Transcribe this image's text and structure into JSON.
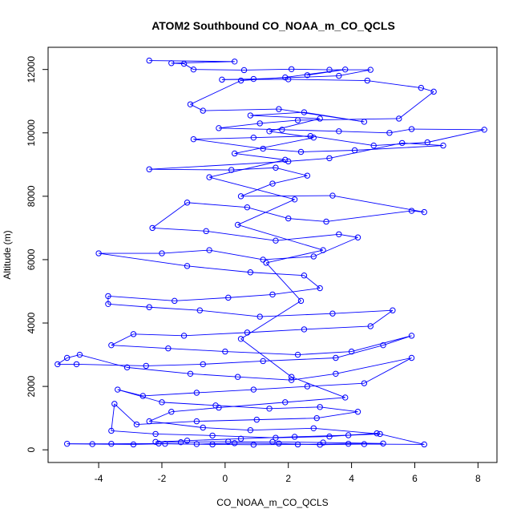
{
  "chart_data": {
    "type": "line",
    "title": "ATOM2 Southbound CO_NOAA_m_CO_QCLS",
    "xlabel": "CO_NOAA_m_CO_QCLS",
    "ylabel": "Altitude (m)",
    "xlim": [
      -5.6,
      8.6
    ],
    "ylim": [
      -400,
      12700
    ],
    "x_ticks": [
      -4,
      -2,
      0,
      2,
      4,
      6,
      8
    ],
    "y_ticks": [
      0,
      2000,
      4000,
      6000,
      8000,
      10000,
      12000
    ],
    "grid": false,
    "legend": "none",
    "colors": {
      "series": "#0000ff",
      "axes": "#000000",
      "background": "#ffffff"
    },
    "series": [
      {
        "markers": "open-circle",
        "connected": true,
        "points": [
          [
            -2.4,
            12280
          ],
          [
            0.3,
            12250
          ],
          [
            -1.7,
            12200
          ],
          [
            -1.3,
            12180
          ],
          [
            -1.0,
            12000
          ],
          [
            0.6,
            11980
          ],
          [
            2.1,
            12010
          ],
          [
            3.3,
            11990
          ],
          [
            4.6,
            11990
          ],
          [
            3.6,
            11800
          ],
          [
            0.9,
            11700
          ],
          [
            -0.1,
            11680
          ],
          [
            2.0,
            11690
          ],
          [
            4.5,
            11650
          ],
          [
            6.2,
            11420
          ],
          [
            6.6,
            11300
          ],
          [
            5.5,
            10450
          ],
          [
            2.3,
            10400
          ],
          [
            1.1,
            10300
          ],
          [
            -0.2,
            10150
          ],
          [
            1.8,
            10100
          ],
          [
            3.6,
            10050
          ],
          [
            5.2,
            10000
          ],
          [
            5.9,
            10120
          ],
          [
            8.2,
            10100
          ],
          [
            6.4,
            9700
          ],
          [
            4.7,
            9600
          ],
          [
            2.7,
            9900
          ],
          [
            0.9,
            9850
          ],
          [
            -1.0,
            9800
          ],
          [
            1.2,
            9500
          ],
          [
            2.4,
            9400
          ],
          [
            4.1,
            9450
          ],
          [
            6.9,
            9600
          ],
          [
            5.6,
            9680
          ],
          [
            3.3,
            9200
          ],
          [
            2.0,
            9100
          ],
          [
            -2.4,
            8850
          ],
          [
            0.2,
            8830
          ],
          [
            1.6,
            8900
          ],
          [
            2.6,
            8650
          ],
          [
            1.5,
            8400
          ],
          [
            0.5,
            8000
          ],
          [
            3.4,
            8020
          ],
          [
            6.3,
            7500
          ],
          [
            5.9,
            7540
          ],
          [
            3.2,
            7200
          ],
          [
            2.0,
            7300
          ],
          [
            0.7,
            7650
          ],
          [
            -1.2,
            7800
          ],
          [
            -2.3,
            7000
          ],
          [
            -0.6,
            6900
          ],
          [
            1.6,
            6600
          ],
          [
            3.6,
            6800
          ],
          [
            4.2,
            6700
          ],
          [
            2.8,
            6100
          ],
          [
            1.2,
            6000
          ],
          [
            -0.5,
            6300
          ],
          [
            -2.0,
            6200
          ],
          [
            -4.0,
            6200
          ],
          [
            -1.2,
            5800
          ],
          [
            0.8,
            5600
          ],
          [
            2.5,
            5500
          ],
          [
            3.0,
            5100
          ],
          [
            1.5,
            4900
          ],
          [
            0.1,
            4800
          ],
          [
            -1.6,
            4700
          ],
          [
            -3.7,
            4850
          ],
          [
            -3.7,
            4600
          ],
          [
            -2.4,
            4500
          ],
          [
            -0.8,
            4400
          ],
          [
            1.1,
            4200
          ],
          [
            3.4,
            4300
          ],
          [
            5.3,
            4400
          ],
          [
            4.6,
            3900
          ],
          [
            2.5,
            3800
          ],
          [
            0.7,
            3700
          ],
          [
            -1.3,
            3600
          ],
          [
            -2.9,
            3650
          ],
          [
            -3.6,
            3300
          ],
          [
            -1.8,
            3200
          ],
          [
            0.0,
            3100
          ],
          [
            2.3,
            3000
          ],
          [
            4.0,
            3100
          ],
          [
            5.9,
            3600
          ],
          [
            5.0,
            3300
          ],
          [
            3.5,
            2900
          ],
          [
            1.2,
            2800
          ],
          [
            -0.7,
            2700
          ],
          [
            -2.5,
            2650
          ],
          [
            -4.7,
            2700
          ],
          [
            -5.3,
            2700
          ],
          [
            -5.0,
            2900
          ],
          [
            -4.6,
            3000
          ],
          [
            -3.1,
            2600
          ],
          [
            -1.1,
            2400
          ],
          [
            0.4,
            2300
          ],
          [
            2.1,
            2200
          ],
          [
            3.5,
            2400
          ],
          [
            5.9,
            2900
          ],
          [
            4.4,
            2100
          ],
          [
            2.6,
            2000
          ],
          [
            0.9,
            1900
          ],
          [
            -0.9,
            1800
          ],
          [
            -2.6,
            1700
          ],
          [
            -3.4,
            1900
          ],
          [
            -2.0,
            1500
          ],
          [
            -0.3,
            1400
          ],
          [
            1.4,
            1300
          ],
          [
            3.0,
            1350
          ],
          [
            4.2,
            1200
          ],
          [
            2.9,
            1000
          ],
          [
            1.0,
            950
          ],
          [
            -0.9,
            900
          ],
          [
            -2.8,
            800
          ],
          [
            -3.5,
            1450
          ],
          [
            -3.6,
            600
          ],
          [
            -2.2,
            500
          ],
          [
            -0.4,
            450
          ],
          [
            1.6,
            380
          ],
          [
            3.3,
            420
          ],
          [
            4.8,
            520
          ],
          [
            6.3,
            170
          ],
          [
            4.4,
            180
          ],
          [
            3.0,
            160
          ],
          [
            1.7,
            200
          ],
          [
            0.3,
            210
          ],
          [
            -0.9,
            180
          ],
          [
            -2.1,
            200
          ],
          [
            -3.6,
            190
          ],
          [
            -5.0,
            190
          ],
          [
            -4.2,
            180
          ],
          [
            -2.9,
            170
          ],
          [
            -1.9,
            190
          ],
          [
            -0.4,
            170
          ],
          [
            0.9,
            160
          ],
          [
            2.3,
            170
          ],
          [
            3.9,
            190
          ],
          [
            5.0,
            200
          ],
          [
            3.1,
            230
          ],
          [
            1.5,
            250
          ],
          [
            0.1,
            260
          ],
          [
            -1.4,
            240
          ],
          [
            -2.2,
            250
          ],
          [
            -1.2,
            290
          ],
          [
            0.5,
            350
          ],
          [
            2.2,
            410
          ],
          [
            3.9,
            460
          ],
          [
            4.9,
            500
          ],
          [
            2.8,
            680
          ],
          [
            0.8,
            620
          ],
          [
            -0.7,
            700
          ],
          [
            -2.4,
            900
          ],
          [
            -1.7,
            1200
          ],
          [
            -0.2,
            1330
          ],
          [
            1.9,
            1500
          ],
          [
            3.8,
            1650
          ],
          [
            2.1,
            2300
          ],
          [
            0.5,
            3500
          ],
          [
            2.4,
            4700
          ],
          [
            1.3,
            5900
          ],
          [
            3.1,
            6300
          ],
          [
            0.4,
            7100
          ],
          [
            2.2,
            7900
          ],
          [
            -0.5,
            8600
          ],
          [
            1.9,
            9150
          ],
          [
            0.3,
            9350
          ],
          [
            2.8,
            9850
          ],
          [
            1.4,
            10050
          ],
          [
            3.0,
            10450
          ],
          [
            0.8,
            10550
          ],
          [
            2.5,
            10650
          ],
          [
            4.4,
            10350
          ],
          [
            1.7,
            10750
          ],
          [
            -0.7,
            10700
          ],
          [
            -1.1,
            10900
          ],
          [
            0.5,
            11650
          ],
          [
            1.9,
            11750
          ],
          [
            3.8,
            12000
          ],
          [
            2.6,
            11820
          ]
        ]
      }
    ]
  }
}
